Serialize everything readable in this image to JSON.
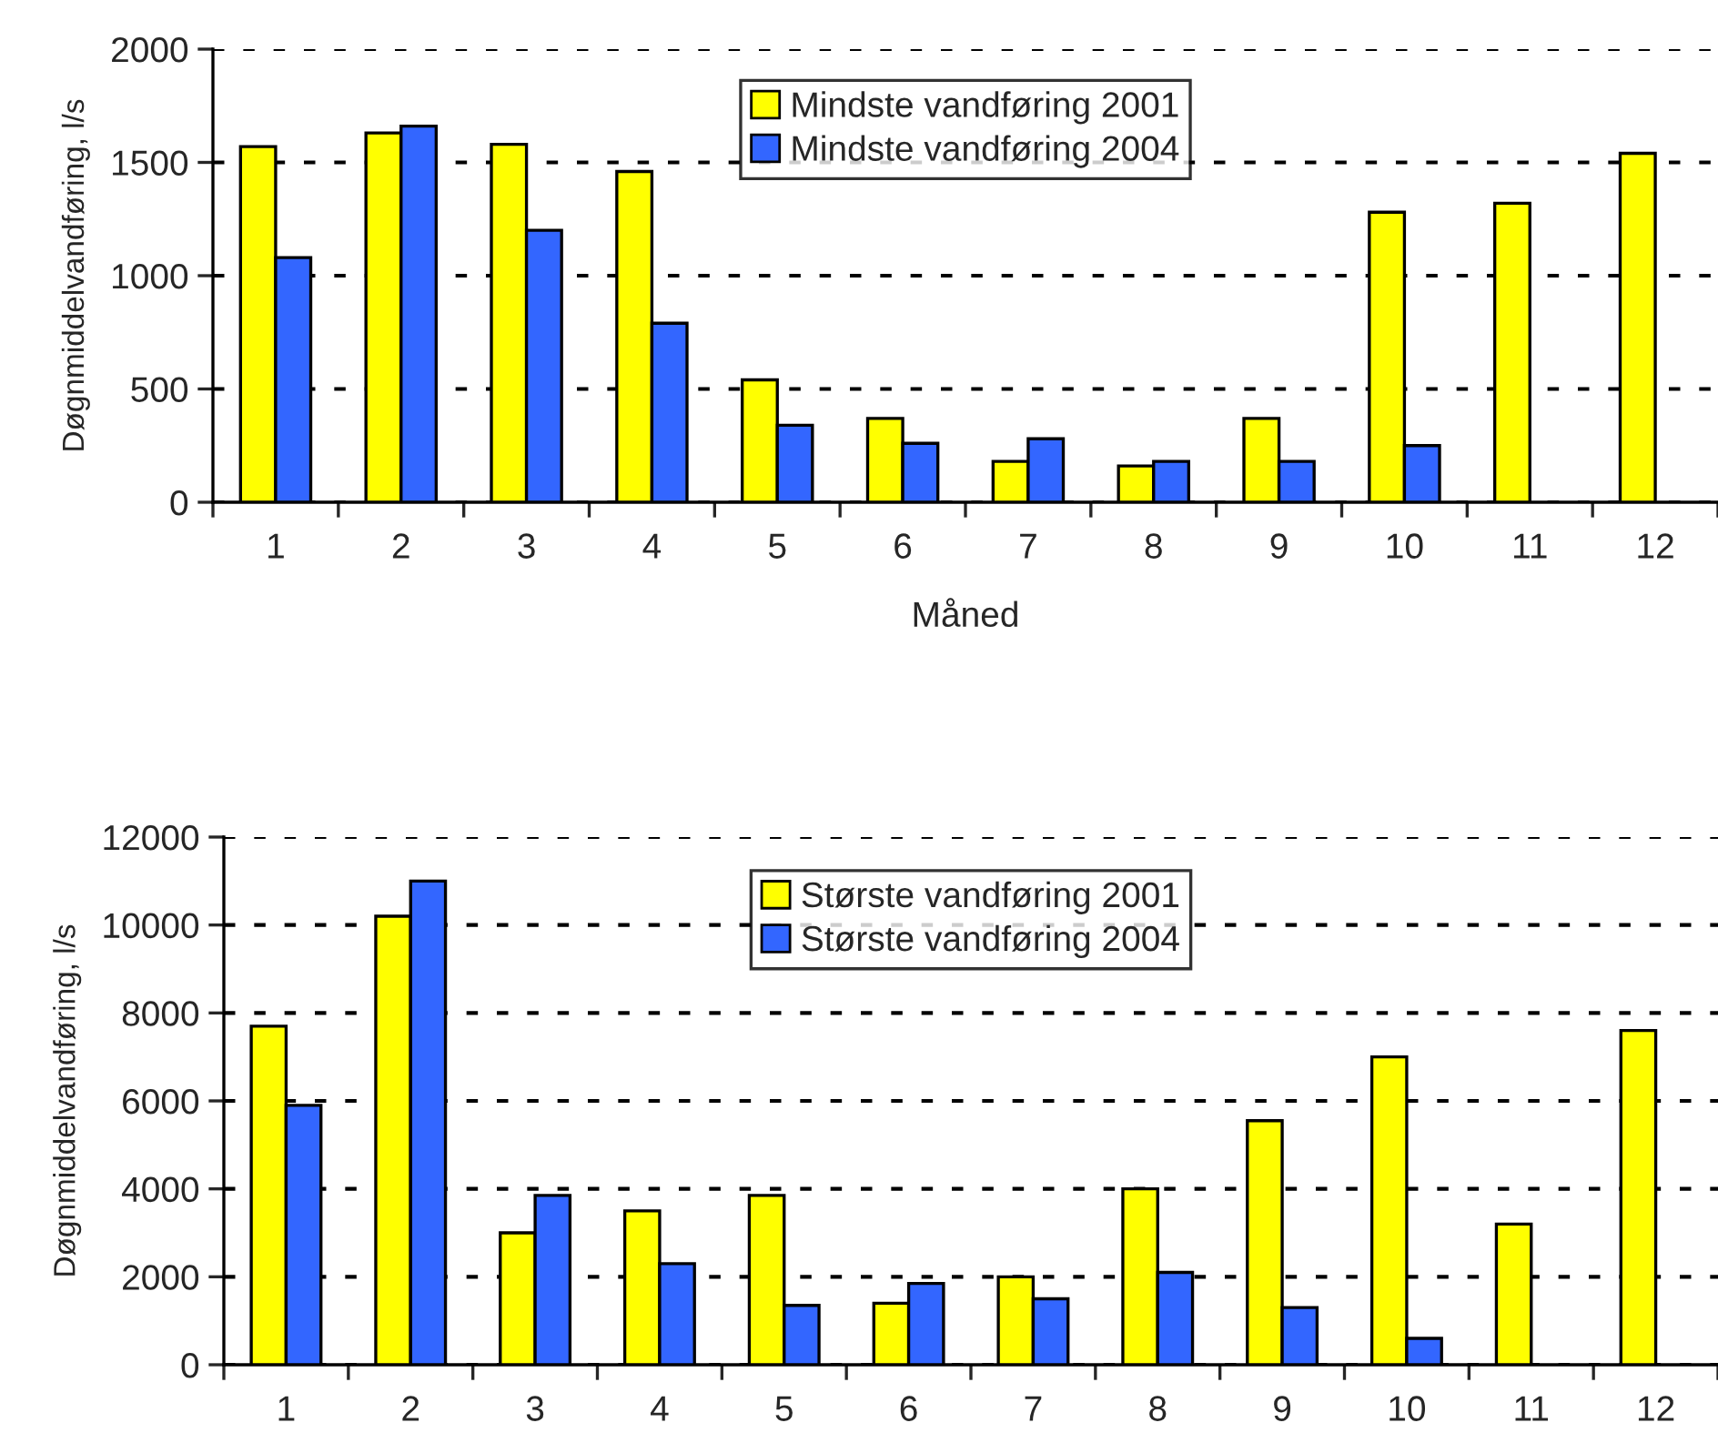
{
  "chart_data": [
    {
      "type": "bar",
      "xlabel": "Måned",
      "ylabel": "Døgnmiddelvandføring, l/s",
      "categories": [
        "1",
        "2",
        "3",
        "4",
        "5",
        "6",
        "7",
        "8",
        "9",
        "10",
        "11",
        "12"
      ],
      "series": [
        {
          "name": "Mindste vandføring 2001",
          "color": "#ffff00",
          "values": [
            1570,
            1630,
            1580,
            1460,
            540,
            370,
            180,
            160,
            370,
            1280,
            1320,
            1540
          ]
        },
        {
          "name": "Mindste vandføring 2004",
          "color": "#3366ff",
          "values": [
            1080,
            1660,
            1200,
            790,
            340,
            260,
            280,
            180,
            180,
            250,
            null,
            null
          ]
        }
      ],
      "ylim": [
        0,
        2000
      ],
      "yticks": [
        0,
        500,
        1000,
        1500,
        2000
      ],
      "grid": "y",
      "legend": "top"
    },
    {
      "type": "bar",
      "ylabel": "Døgnmiddelvandføring, l/s",
      "categories": [
        "1",
        "2",
        "3",
        "4",
        "5",
        "6",
        "7",
        "8",
        "9",
        "10",
        "11",
        "12"
      ],
      "series": [
        {
          "name": "Største vandføring 2001",
          "color": "#ffff00",
          "values": [
            7700,
            10200,
            3000,
            3500,
            3850,
            1400,
            2000,
            4000,
            5550,
            7000,
            3200,
            7600
          ]
        },
        {
          "name": "Største vandføring 2004",
          "color": "#3366ff",
          "values": [
            5900,
            11000,
            3850,
            2300,
            1350,
            1850,
            1500,
            2100,
            1300,
            600,
            null,
            null
          ]
        }
      ],
      "ylim": [
        0,
        12000
      ],
      "yticks": [
        0,
        2000,
        4000,
        6000,
        8000,
        10000,
        12000
      ],
      "grid": "y",
      "legend": "top"
    }
  ]
}
